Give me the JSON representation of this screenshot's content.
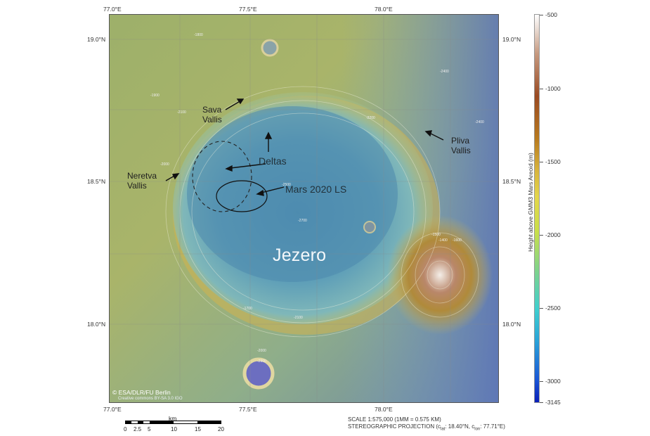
{
  "map": {
    "title_label": "Jezero",
    "features": {
      "sava": "Sava\nVallis",
      "neretva": "Neretva\nVallis",
      "pliva": "Pliva\nVallis",
      "deltas": "Deltas",
      "landing_site": "Mars 2020 LS"
    },
    "lon_ticks": [
      "77.0°E",
      "77.5°E",
      "78.0°E"
    ],
    "lat_ticks": [
      "19.0°N",
      "18.5°N",
      "18.0°N"
    ],
    "contour_labels": [
      "-1800",
      "-1900",
      "-2000",
      "-2100",
      "-2200",
      "-2400",
      "-2500",
      "-2600",
      "-2700",
      "-1500",
      "-1400",
      "-1600",
      "-1700",
      "-1900",
      "-2100",
      "-2000",
      "-2400",
      "-2800",
      "-2900",
      "-2300"
    ],
    "credit": "© ESA/DLR/FU Berlin",
    "license": "Creative commons BY-SA 3.0 IGO"
  },
  "colorbar": {
    "title": "Height above GMM3 Mars Areoid (m)",
    "ticks": [
      "-500",
      "-1000",
      "-1500",
      "-2000",
      "-2500",
      "-3000",
      "-3145"
    ],
    "colors": {
      "high": "#ffffff",
      "mid_high": "#9a4a22",
      "mid": "#e3d64a",
      "mid_low": "#3fcfcf",
      "low": "#0a1fb8"
    }
  },
  "scale": {
    "unit": "km",
    "numbers": [
      "0",
      "2.5",
      "5",
      "10",
      "15",
      "20"
    ],
    "scale_text": "SCALE 1:575,000 (1MM = 0.575 KM)",
    "projection_text": "STEREOGRAPHIC PROJECTION (c",
    "projection_lat_sub": "lat",
    "projection_mid": ": 18.40°N, c",
    "projection_lon_sub": "lon",
    "projection_end": ": 77.71°E)"
  }
}
